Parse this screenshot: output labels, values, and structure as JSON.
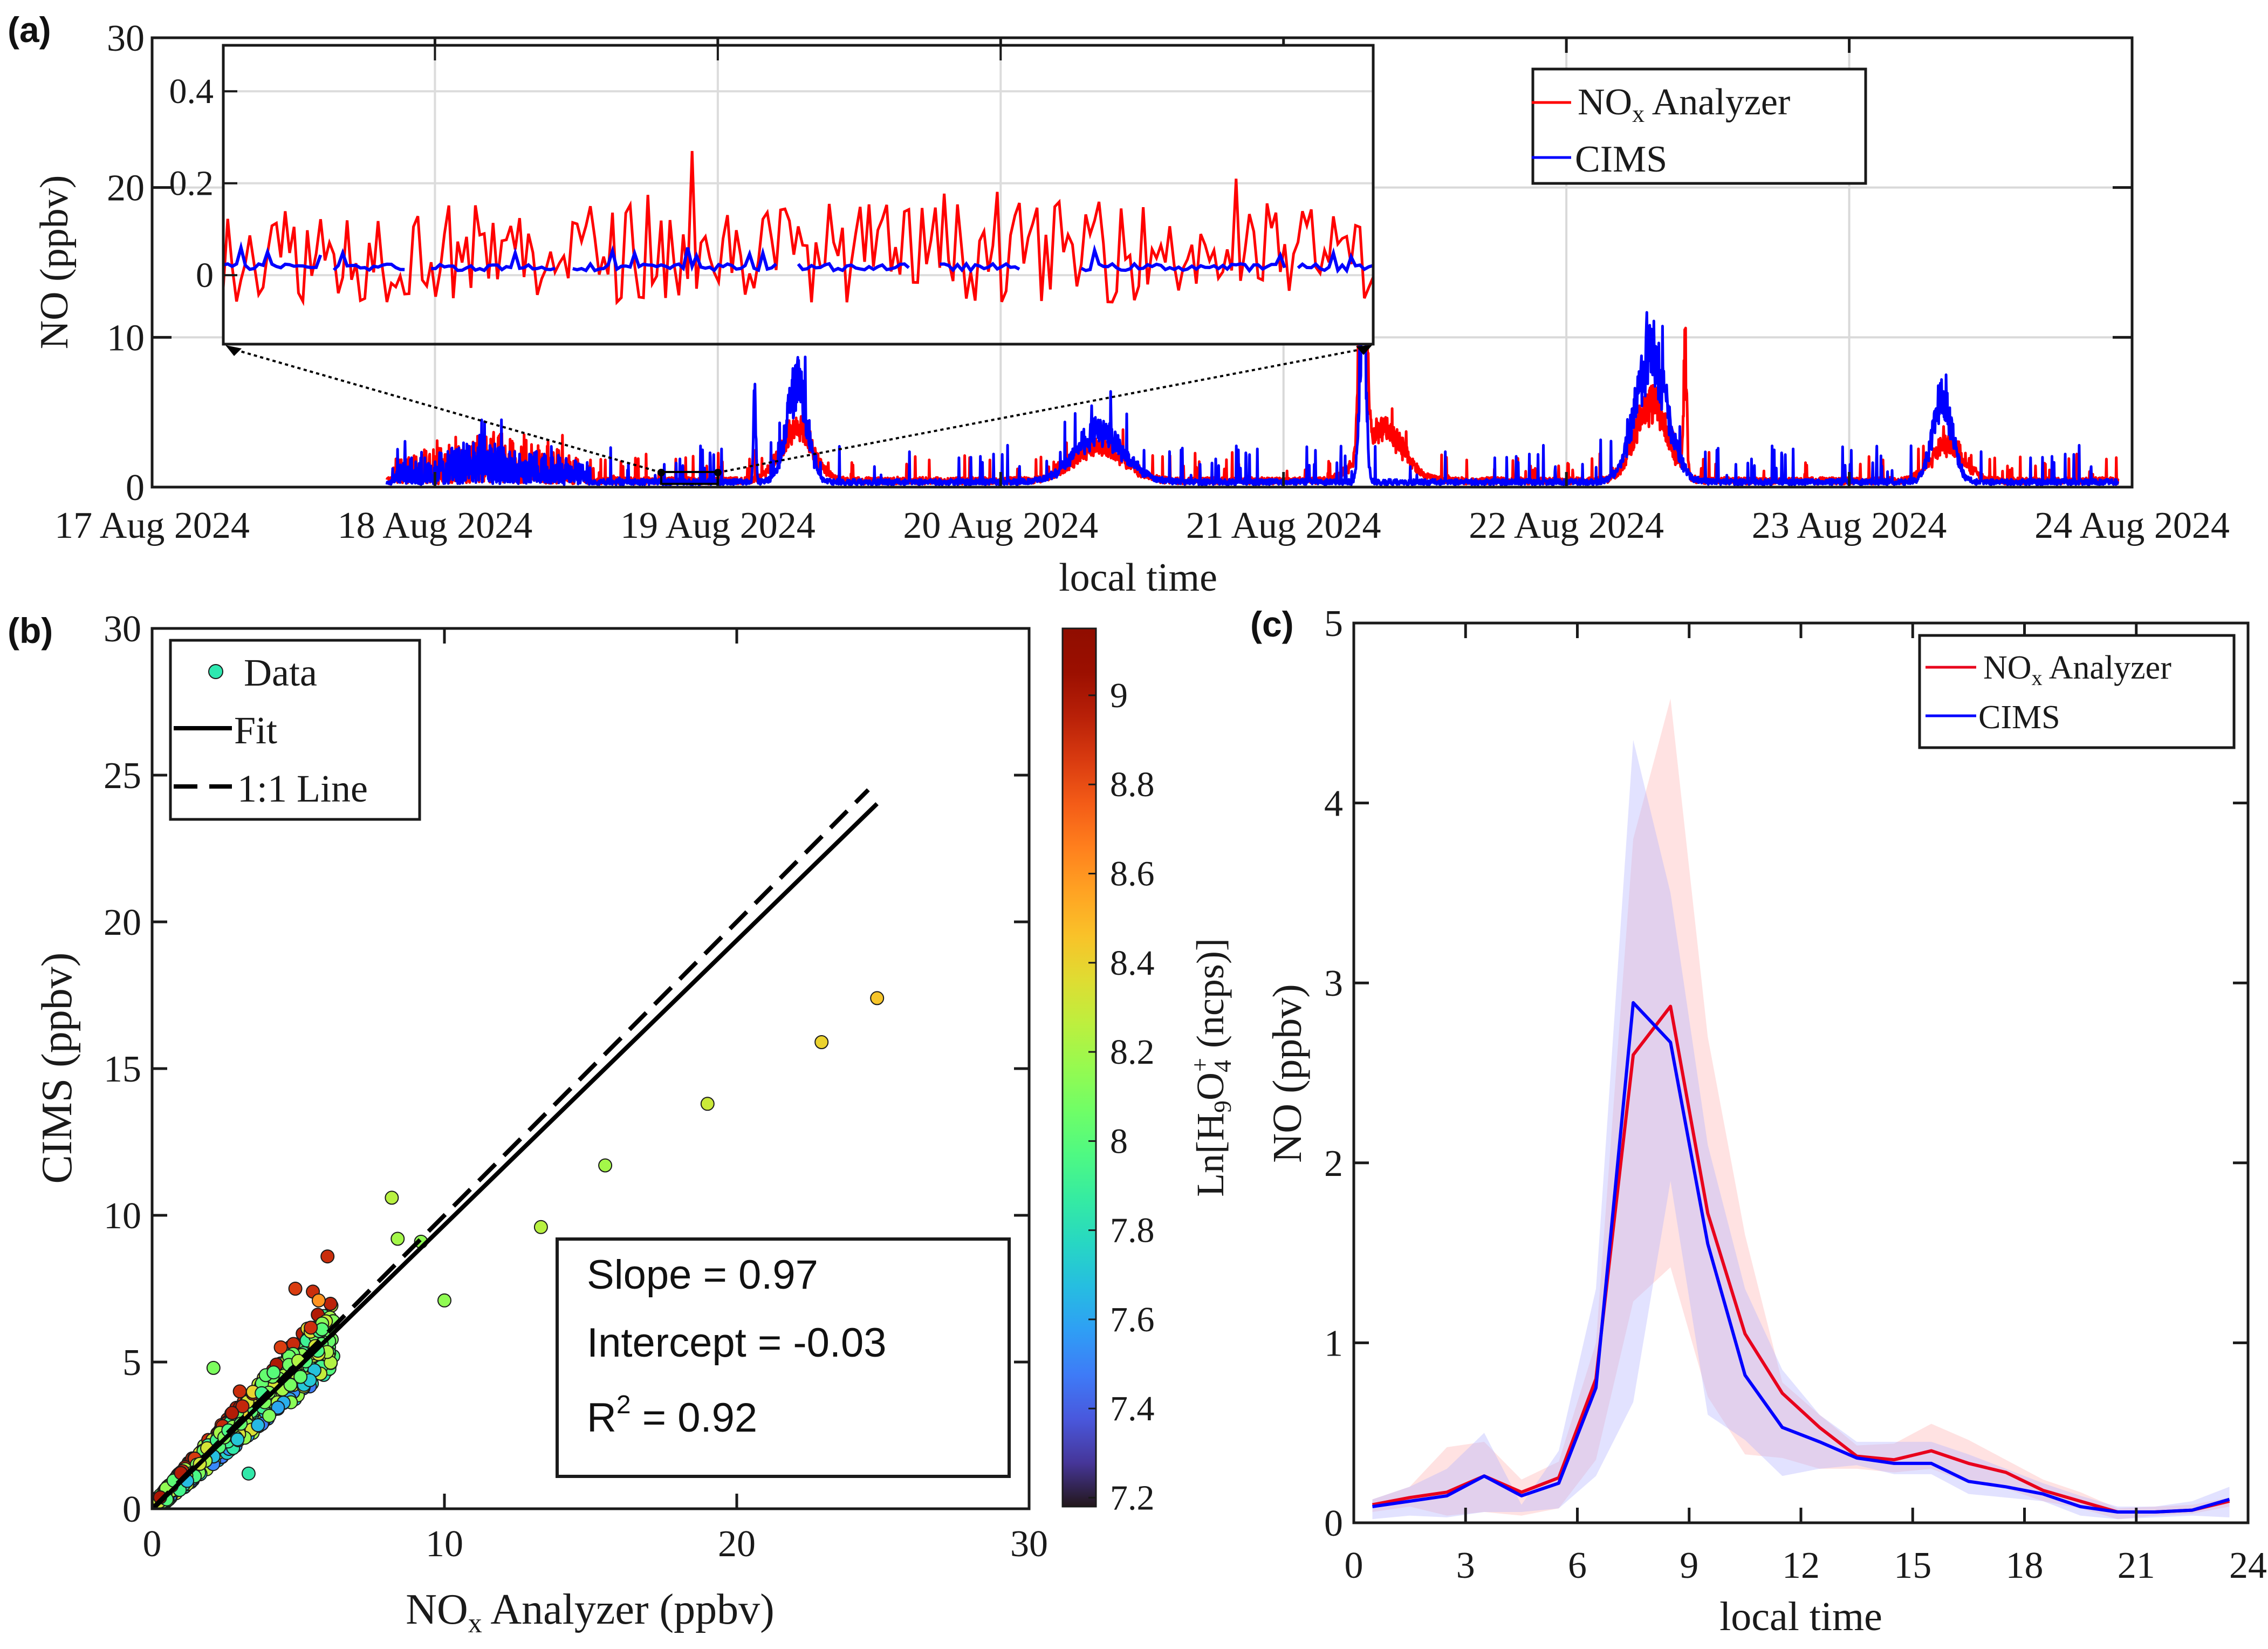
{
  "chart_data": [
    {
      "panel_label": "(a)",
      "type": "line",
      "title": "",
      "xlabel": "local time",
      "ylabel": "NO (ppbv)",
      "ylim": [
        0,
        30
      ],
      "yticks": [
        "0",
        "10",
        "20",
        "30"
      ],
      "xticks": [
        "17 Aug 2024",
        "18 Aug 2024",
        "19 Aug 2024",
        "20 Aug 2024",
        "21 Aug 2024",
        "22 Aug 2024",
        "23 Aug 2024",
        "24 Aug 2024"
      ],
      "xlim_days": [
        0,
        7
      ],
      "grid": true,
      "legend": {
        "placement": "top-right",
        "entries": [
          {
            "label_main": "NO",
            "label_sub": "x",
            "label_rest": " Analyzer",
            "color": "#ff0000"
          },
          {
            "label_main": "CIMS",
            "label_sub": "",
            "label_rest": "",
            "color": "#0000ff"
          }
        ]
      },
      "data_start_day": 0.83,
      "data_end_day": 6.95,
      "series": [
        {
          "name": "NOx Analyzer",
          "color": "#ff0000",
          "events": [
            {
              "day": 1.2,
              "peak": 3.5,
              "width": 0.35,
              "kind": "noisy"
            },
            {
              "day": 2.28,
              "peak": 4.5,
              "width": 0.08
            },
            {
              "day": 3.35,
              "peak": 3.0,
              "width": 0.12
            },
            {
              "day": 4.28,
              "peak": 29.5,
              "width": 0.015
            },
            {
              "day": 4.35,
              "peak": 4.5,
              "width": 0.1
            },
            {
              "day": 5.3,
              "peak": 6.5,
              "width": 0.08
            },
            {
              "day": 5.42,
              "peak": 10.2,
              "width": 0.008
            },
            {
              "day": 6.35,
              "peak": 3.2,
              "width": 0.08
            }
          ]
        },
        {
          "name": "CIMS",
          "color": "#0000ff",
          "events": [
            {
              "day": 1.2,
              "peak": 3.0,
              "width": 0.35,
              "kind": "noisy"
            },
            {
              "day": 2.13,
              "peak": 7.3,
              "width": 0.006
            },
            {
              "day": 2.28,
              "peak": 8.5,
              "width": 0.05
            },
            {
              "day": 3.35,
              "peak": 4.3,
              "width": 0.12
            },
            {
              "day": 4.28,
              "peak": 15.8,
              "width": 0.015
            },
            {
              "day": 5.3,
              "peak": 10.5,
              "width": 0.08
            },
            {
              "day": 6.33,
              "peak": 7.0,
              "width": 0.05
            }
          ]
        }
      ],
      "zoom_window_days": [
        1.8,
        2.0
      ],
      "inset": {
        "ylim": [
          -0.15,
          0.5
        ],
        "yticks": [
          "0",
          "0.2",
          "0.4"
        ],
        "series_note": "NOx Analyzer fluctuates ~ -0.1 to 0.25 ppbv; CIMS stays near 0 to 0.06 ppbv with gaps",
        "nox_max": 0.27,
        "nox_min": -0.1,
        "cims_max": 0.06,
        "cims_min": -0.01
      }
    },
    {
      "panel_label": "(b)",
      "type": "scatter",
      "xlabel_main": "NO",
      "xlabel_sub": "x",
      "xlabel_rest": " Analyzer (ppbv)",
      "ylabel": "CIMS (ppbv)",
      "xlim": [
        0,
        30
      ],
      "ylim": [
        0,
        30
      ],
      "xticks": [
        "0",
        "10",
        "20",
        "30"
      ],
      "yticks": [
        "0",
        "5",
        "10",
        "15",
        "20",
        "25",
        "30"
      ],
      "legend": {
        "placement": "top-left",
        "entries": [
          "Data",
          "Fit",
          "1:1 Line"
        ]
      },
      "fit": {
        "slope": 0.97,
        "intercept": -0.03,
        "x_range": [
          0,
          24.8
        ]
      },
      "one_to_one": {
        "x_range": [
          0,
          24.5
        ]
      },
      "stats": {
        "slope_text": "Slope = 0.97",
        "intercept_text": "Intercept = -0.03",
        "r2_label": "R",
        "r2_sup": "2",
        "r2_value": " = 0.92"
      },
      "colorbar": {
        "label": "Ln[H9O4+ (ncps)]",
        "label_parts": {
          "pre": "Ln[H",
          "sub1": "9",
          "mid": "O",
          "sub2": "4",
          "sup": "+",
          "post": " (ncps)]"
        },
        "range": [
          7.18,
          9.15
        ],
        "ticks": [
          "7.2",
          "7.4",
          "7.6",
          "7.8",
          "8",
          "8.2",
          "8.4",
          "8.6",
          "8.8",
          "9"
        ],
        "colormap": "turbo"
      },
      "outlier_points": [
        {
          "x": 24.8,
          "y": 17.4,
          "c": 8.45
        },
        {
          "x": 22.9,
          "y": 15.9,
          "c": 8.4
        },
        {
          "x": 19.0,
          "y": 13.8,
          "c": 8.3
        },
        {
          "x": 15.5,
          "y": 11.7,
          "c": 8.2
        },
        {
          "x": 13.3,
          "y": 9.6,
          "c": 8.25
        },
        {
          "x": 10.0,
          "y": 7.1,
          "c": 8.15
        },
        {
          "x": 8.2,
          "y": 10.6,
          "c": 8.25
        },
        {
          "x": 8.4,
          "y": 9.2,
          "c": 8.2
        },
        {
          "x": 9.2,
          "y": 9.1,
          "c": 8.15
        },
        {
          "x": 6.0,
          "y": 8.6,
          "c": 8.9
        },
        {
          "x": 4.9,
          "y": 7.5,
          "c": 8.85
        },
        {
          "x": 5.5,
          "y": 7.4,
          "c": 8.9
        },
        {
          "x": 5.7,
          "y": 7.1,
          "c": 8.6
        },
        {
          "x": 4.4,
          "y": 5.5,
          "c": 8.85
        },
        {
          "x": 3.0,
          "y": 4.0,
          "c": 8.9
        },
        {
          "x": 3.3,
          "y": 1.2,
          "c": 7.85
        },
        {
          "x": 2.1,
          "y": 4.8,
          "c": 8.1
        }
      ],
      "cluster_note": "Dense cluster of ~thousands of points from 0-8 ppbv along fit line"
    },
    {
      "panel_label": "(c)",
      "type": "line",
      "xlabel": "local time",
      "ylabel": "NO (ppbv)",
      "xlim": [
        0,
        24
      ],
      "ylim": [
        0,
        5
      ],
      "xticks": [
        "0",
        "3",
        "6",
        "9",
        "12",
        "15",
        "18",
        "21",
        "24"
      ],
      "yticks": [
        "0",
        "1",
        "2",
        "3",
        "4",
        "5"
      ],
      "legend": {
        "placement": "top-right"
      },
      "x": [
        0.5,
        1.5,
        2.5,
        3.5,
        4.5,
        5.5,
        6.5,
        7.5,
        8.5,
        9.5,
        10.5,
        11.5,
        12.5,
        13.5,
        14.5,
        15.5,
        16.5,
        17.5,
        18.5,
        19.5,
        20.5,
        21.5,
        22.5,
        23.5
      ],
      "series": [
        {
          "name": "NOx Analyzer",
          "color": "#e8001c",
          "band_color": "#ffb3b3",
          "values": [
            0.1,
            0.14,
            0.17,
            0.26,
            0.17,
            0.25,
            0.8,
            2.6,
            2.87,
            1.72,
            1.05,
            0.72,
            0.53,
            0.37,
            0.35,
            0.4,
            0.33,
            0.28,
            0.18,
            0.12,
            0.06,
            0.06,
            0.07,
            0.12
          ],
          "lower": [
            0.06,
            0.09,
            0.04,
            0.06,
            0.04,
            0.08,
            0.35,
            1.23,
            1.42,
            0.7,
            0.38,
            0.36,
            0.3,
            0.3,
            0.28,
            0.3,
            0.22,
            0.19,
            0.12,
            0.08,
            0.02,
            0.04,
            0.05,
            0.09
          ],
          "upper": [
            0.13,
            0.2,
            0.42,
            0.45,
            0.24,
            0.34,
            1.0,
            3.8,
            4.58,
            2.7,
            1.6,
            0.78,
            0.6,
            0.43,
            0.44,
            0.55,
            0.46,
            0.35,
            0.24,
            0.17,
            0.08,
            0.09,
            0.1,
            0.14
          ]
        },
        {
          "name": "CIMS",
          "color": "#0000ff",
          "band_color": "#b3b3ff",
          "values": [
            0.09,
            0.12,
            0.15,
            0.26,
            0.15,
            0.22,
            0.75,
            2.89,
            2.67,
            1.55,
            0.82,
            0.53,
            0.45,
            0.36,
            0.33,
            0.33,
            0.23,
            0.2,
            0.16,
            0.09,
            0.06,
            0.06,
            0.07,
            0.13
          ],
          "lower": [
            0.02,
            0.04,
            0.03,
            0.06,
            0.06,
            0.08,
            0.26,
            0.67,
            1.9,
            0.6,
            0.46,
            0.26,
            0.3,
            0.32,
            0.27,
            0.27,
            0.16,
            0.14,
            0.12,
            0.04,
            0.02,
            0.03,
            0.04,
            0.03
          ],
          "upper": [
            0.13,
            0.2,
            0.3,
            0.5,
            0.1,
            0.4,
            1.3,
            4.35,
            3.5,
            2.1,
            1.3,
            0.85,
            0.6,
            0.45,
            0.45,
            0.45,
            0.38,
            0.3,
            0.22,
            0.15,
            0.09,
            0.09,
            0.12,
            0.2
          ]
        }
      ]
    }
  ],
  "labels": {
    "panel_a": "(a)",
    "panel_b": "(b)",
    "panel_c": "(c)",
    "legend_nox_main": "NO",
    "legend_nox_sub": "x",
    "legend_nox_rest": " Analyzer",
    "legend_cims": "CIMS",
    "legend_data": "Data",
    "legend_fit": "Fit",
    "legend_one_to_one": "1:1 Line"
  }
}
